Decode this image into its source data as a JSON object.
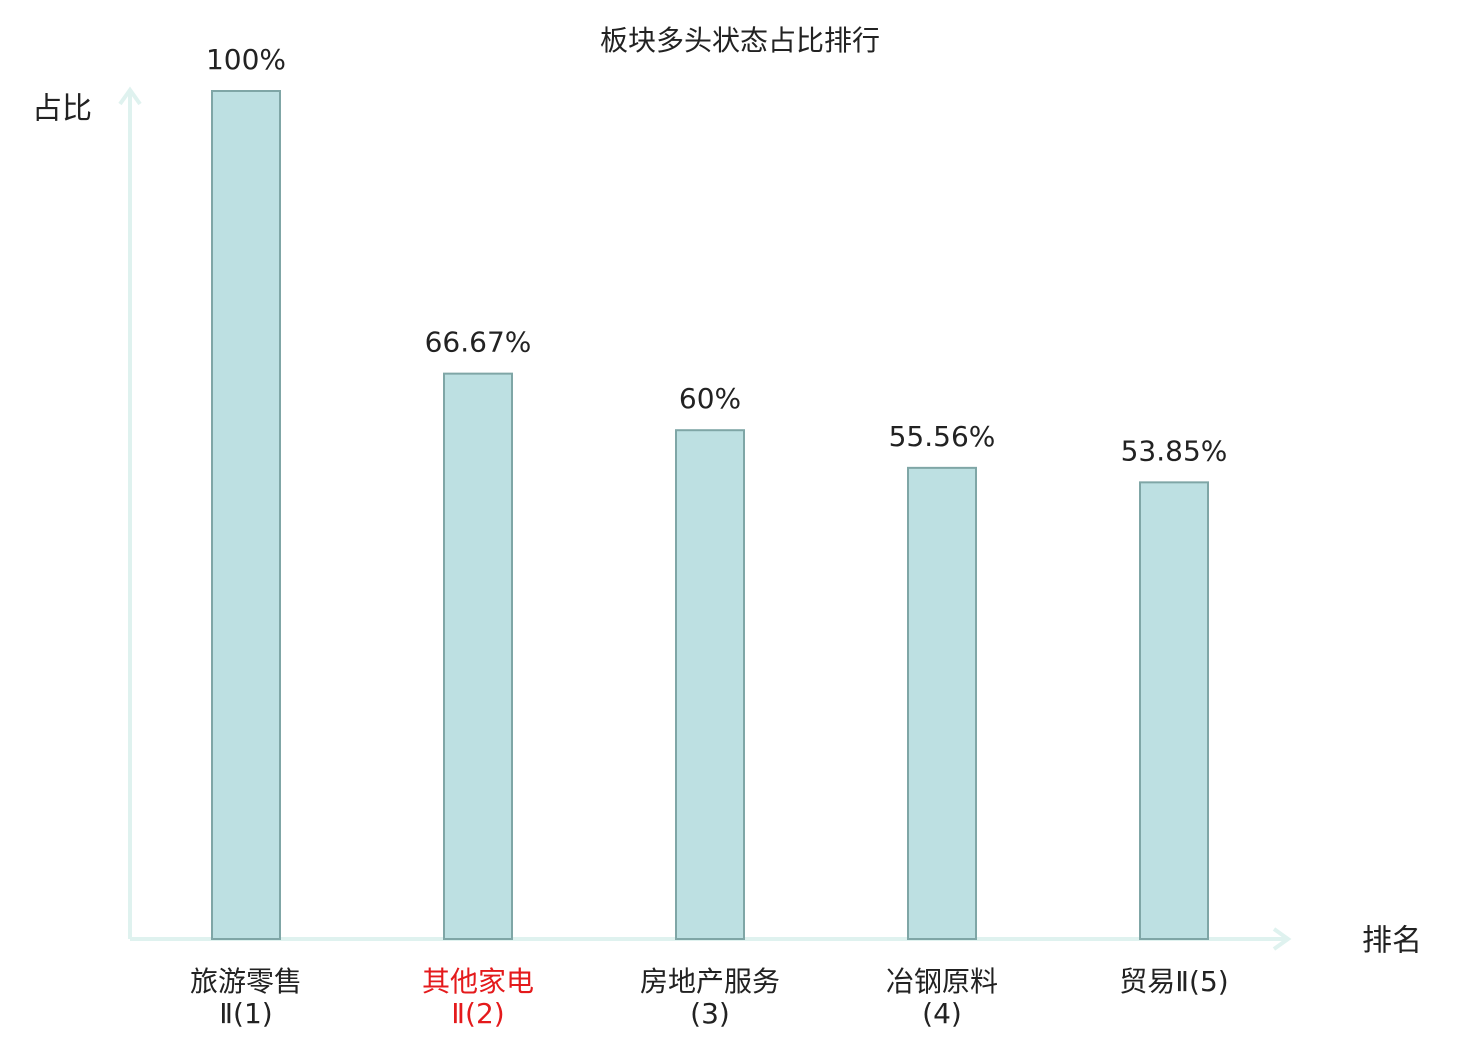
{
  "chart_data": {
    "type": "bar",
    "title": "板块多头状态占比排行",
    "y_label": "占比",
    "x_label": "排名",
    "categories": [
      "旅游零售Ⅱ(1)",
      "其他家电Ⅱ(2)",
      "房地产服务(3)",
      "冶钢原料(4)",
      "贸易Ⅱ(5)"
    ],
    "category_colors": [
      "#222222",
      "#e41a1c",
      "#222222",
      "#222222",
      "#222222"
    ],
    "values": [
      100,
      66.67,
      60,
      55.56,
      53.85
    ],
    "value_labels": [
      "100%",
      "66.67%",
      "60%",
      "55.56%",
      "53.85%"
    ],
    "color": "#bde0e2",
    "edge_color": "#7fa6a6",
    "ylim": [
      0,
      100
    ]
  }
}
